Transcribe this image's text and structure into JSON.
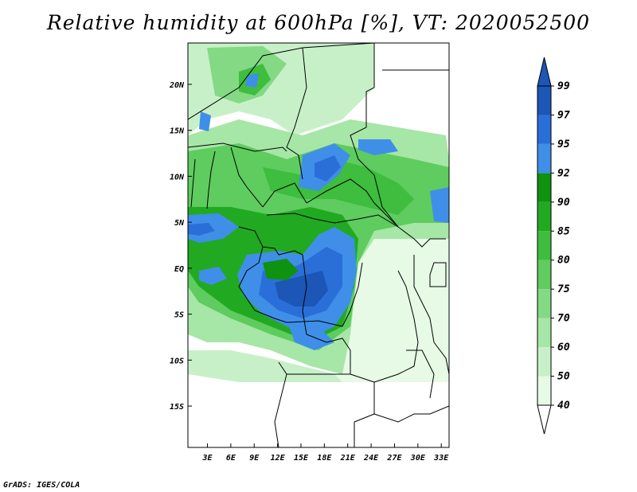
{
  "title": "Relative humidity at 600hPa [%], VT: 2020052500",
  "credit": "GrADS: IGES/COLA",
  "map": {
    "lat_labels": [
      "20N",
      "15N",
      "10N",
      "5N",
      "EQ",
      "5S",
      "10S",
      "15S"
    ],
    "lon_labels": [
      "3E",
      "6E",
      "9E",
      "12E",
      "15E",
      "18E",
      "21E",
      "24E",
      "27E",
      "30E",
      "33E"
    ],
    "lon_range_deg": [
      0.5,
      34.0
    ],
    "lat_range_deg": [
      -19.5,
      24.5
    ]
  },
  "colorbar": {
    "levels": [
      "40",
      "50",
      "60",
      "70",
      "75",
      "80",
      "85",
      "90",
      "92",
      "95",
      "97",
      "99"
    ],
    "colors": [
      "#e6fae6",
      "#c8f0c8",
      "#a6e6a6",
      "#84d984",
      "#5ecc5e",
      "#3ebd3e",
      "#22a922",
      "#0f920f",
      "#3f8fe8",
      "#2a6fd8",
      "#1c56b6"
    ]
  }
}
